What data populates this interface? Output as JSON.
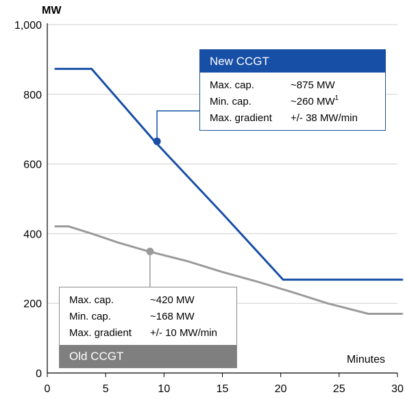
{
  "chart_data": {
    "type": "line",
    "y_unit": "MW",
    "xlabel": "Minutes",
    "xlim": [
      0,
      30
    ],
    "ylim": [
      0,
      1000
    ],
    "x_ticks": [
      0,
      5,
      10,
      15,
      20,
      25,
      30
    ],
    "y_ticks": [
      0,
      200,
      400,
      600,
      800,
      1000
    ],
    "y_tick_labels": [
      "0",
      "200",
      "400",
      "600",
      "800",
      "1,000"
    ],
    "grid": "horizontal",
    "series": [
      {
        "name": "New CCGT",
        "color": "#174ea6",
        "x": [
          0.7,
          3.8,
          9.2,
          15,
          20.2,
          30.4
        ],
        "y": [
          873,
          873,
          665,
          458,
          268,
          268
        ],
        "marker": {
          "x": 9.4,
          "y": 665
        }
      },
      {
        "name": "Old CCGT",
        "color": "#9a9a9a",
        "x": [
          0.7,
          1.8,
          4,
          6,
          8.6,
          12,
          15,
          18,
          21,
          24,
          27.5,
          30.4
        ],
        "y": [
          421,
          421,
          398,
          375,
          350,
          321,
          290,
          262,
          232,
          200,
          170,
          170
        ],
        "marker": {
          "x": 8.8,
          "y": 349
        }
      }
    ]
  },
  "new_ccgt": {
    "title": "New CCGT",
    "rows": [
      {
        "label": "Max. cap.",
        "value": "~875 MW"
      },
      {
        "label": "Min. cap.",
        "value": "~260 MW",
        "footnote": "1"
      },
      {
        "label": "Max. gradient",
        "value": "+/- 38 MW/min"
      }
    ]
  },
  "old_ccgt": {
    "title": "Old CCGT",
    "rows": [
      {
        "label": "Max. cap.",
        "value": "~420 MW"
      },
      {
        "label": "Min. cap.",
        "value": "~168 MW"
      },
      {
        "label": "Max. gradient",
        "value": "+/- 10 MW/min"
      }
    ]
  }
}
